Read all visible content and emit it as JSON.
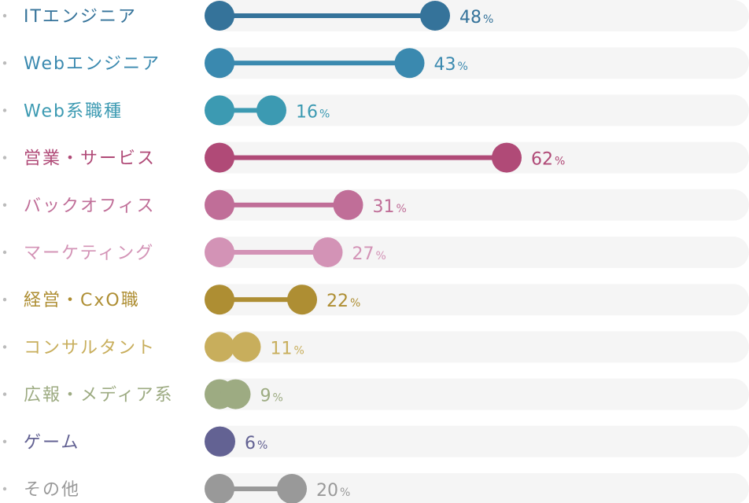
{
  "chart_data": {
    "type": "bar",
    "orientation": "horizontal",
    "title": "",
    "xlabel": "",
    "ylabel": "",
    "xlim": [
      0,
      100
    ],
    "grid": false,
    "value_suffix": "%",
    "categories": [
      "ITエンジニア",
      "Webエンジニア",
      "Web系職種",
      "営業・サービス",
      "バックオフィス",
      "マーケティング",
      "経営・CxO職",
      "コンサルタント",
      "広報・メディア系",
      "ゲーム",
      "その他"
    ],
    "values": [
      48,
      43,
      16,
      62,
      31,
      27,
      22,
      11,
      9,
      6,
      20
    ],
    "colors": [
      "#35739A",
      "#3A89AF",
      "#3C9AB2",
      "#B04A77",
      "#C06E98",
      "#D393B6",
      "#AE8E33",
      "#C8AE5C",
      "#9DAB82",
      "#636293",
      "#999999"
    ],
    "track_color": "#F5F5F5",
    "bullet_color": "#BBBBBB"
  }
}
